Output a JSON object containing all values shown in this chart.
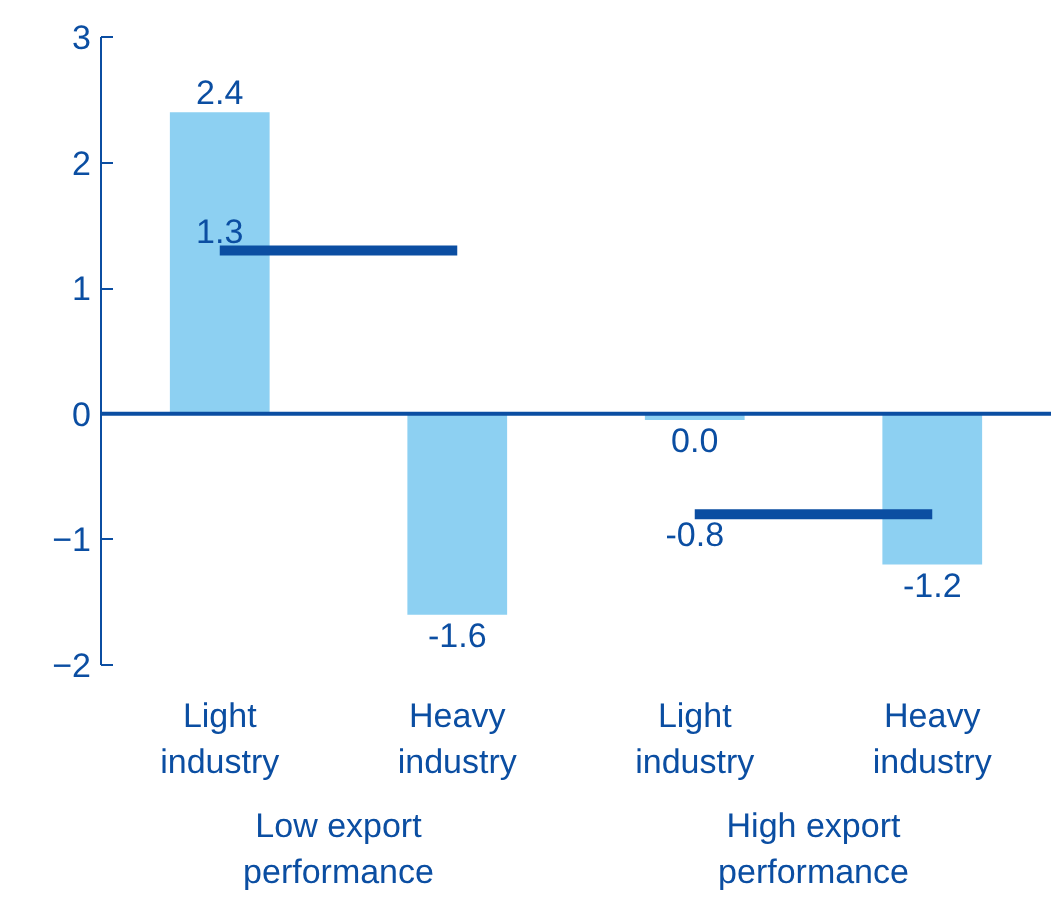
{
  "chart_data": {
    "type": "bar",
    "categories": [
      "Light industry",
      "Heavy industry",
      "Light industry",
      "Heavy industry"
    ],
    "series": [
      {
        "color": "#8dd0f2",
        "values": [
          2.4,
          -1.6,
          -0.05,
          -1.2
        ],
        "value_labels": [
          "2.4",
          "-1.6",
          "0.0",
          "-1.2"
        ]
      },
      {
        "type": "line",
        "color": "#0b4ea2",
        "values": [
          1.3,
          1.3,
          null,
          null
        ],
        "value_labels": [
          "1.3",
          null,
          null,
          null
        ]
      },
      {
        "type": "line",
        "color": "#0b4ea2",
        "values": [
          null,
          null,
          -0.8,
          -0.8
        ],
        "value_labels": [
          null,
          null,
          "-0.8",
          null
        ]
      }
    ],
    "ref_lines": [
      {
        "axis": "y",
        "value": 0,
        "color": "#0b4ea2"
      }
    ],
    "ylim": [
      -2,
      3
    ],
    "yticks": [
      -2,
      -1,
      0,
      1,
      2,
      3
    ],
    "grid": false,
    "annotations": [
      "Low export performance",
      "High export performance"
    ]
  }
}
